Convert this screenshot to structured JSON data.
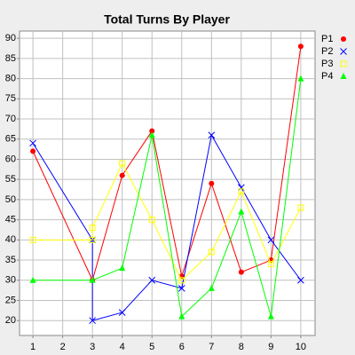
{
  "chart_data": {
    "type": "line",
    "title": "Total Turns By Player",
    "xlim": [
      0.55,
      10.48
    ],
    "xticks": [
      1,
      2,
      3,
      4,
      5,
      6,
      7,
      8,
      9,
      10
    ],
    "ylim": [
      16.3,
      91.8
    ],
    "yticks": [
      20,
      25,
      30,
      35,
      40,
      45,
      50,
      55,
      60,
      65,
      70,
      75,
      80,
      85,
      90
    ],
    "grid": true,
    "series": [
      {
        "name": "P1",
        "color": "#ff0000",
        "marker": "circle",
        "x": [
          1,
          3,
          4,
          5,
          6,
          7,
          8,
          9,
          10
        ],
        "values": [
          62,
          30,
          56,
          67,
          31,
          54,
          32,
          35,
          88
        ]
      },
      {
        "name": "P2",
        "color": "#0000ff",
        "marker": "x",
        "x": [
          1,
          3,
          3,
          4,
          5,
          6,
          7,
          8,
          9,
          10
        ],
        "values": [
          64,
          40,
          20,
          22,
          30,
          28,
          66,
          53,
          40,
          30
        ]
      },
      {
        "name": "P3",
        "color": "#ffff00",
        "marker": "square",
        "x": [
          1,
          3,
          3,
          4,
          5,
          6,
          7,
          8,
          9,
          10
        ],
        "values": [
          40,
          40,
          43,
          59,
          45,
          30,
          37,
          52,
          34,
          48
        ]
      },
      {
        "name": "P4",
        "color": "#00ff00",
        "marker": "triangle",
        "x": [
          1,
          3,
          4,
          5,
          6,
          7,
          8,
          9,
          10
        ],
        "values": [
          30,
          30,
          33,
          66,
          21,
          28,
          47,
          21,
          80
        ]
      }
    ]
  }
}
